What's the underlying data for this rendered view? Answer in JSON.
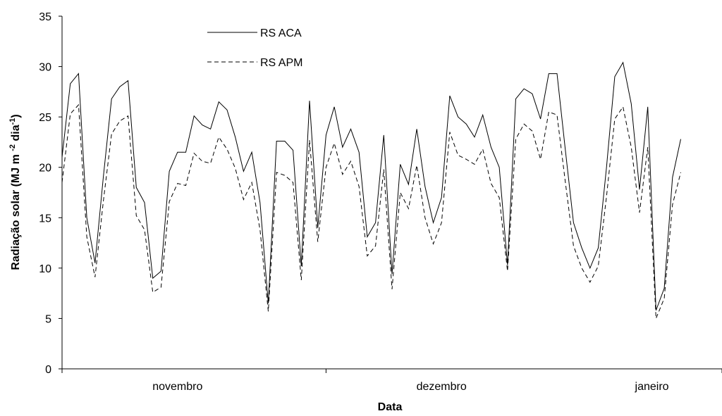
{
  "chart_data": {
    "type": "line",
    "title": "",
    "xlabel": "Data",
    "ylabel": "Radiação solar (MJ m <sup>-2</sup> dia<sup>-1</sup>)",
    "ylabel_parts": [
      "Radiação solar (MJ m ",
      "-2",
      " dia",
      "-1",
      ")"
    ],
    "ylim": [
      0,
      35
    ],
    "y_ticks": [
      0,
      5,
      10,
      15,
      20,
      25,
      30,
      35
    ],
    "x_range": [
      0,
      80
    ],
    "x_month_labels": [
      {
        "label": "novembro",
        "x": 14
      },
      {
        "label": "dezembro",
        "x": 46
      },
      {
        "label": "janeiro",
        "x": 71.5
      }
    ],
    "x_tick_marks": [
      0,
      32,
      80
    ],
    "grid": false,
    "legend_position": "top-left",
    "series": [
      {
        "name": "RS ACA",
        "style": "solid",
        "color": "#000000",
        "values": [
          21.0,
          28.3,
          29.3,
          15.0,
          10.5,
          19.0,
          26.8,
          28.0,
          28.6,
          18.0,
          16.5,
          9.0,
          9.7,
          19.6,
          21.5,
          21.5,
          25.1,
          24.2,
          23.8,
          26.5,
          25.7,
          23.0,
          19.6,
          21.5,
          16.5,
          6.5,
          22.6,
          22.6,
          21.7,
          10.2,
          26.6,
          14.0,
          23.2,
          26.0,
          22.0,
          23.8,
          21.5,
          13.1,
          14.5,
          23.2,
          9.4,
          20.3,
          18.3,
          23.8,
          18.1,
          14.5,
          17.0,
          27.1,
          25.0,
          24.3,
          23.0,
          25.2,
          22.0,
          20.0,
          10.3,
          26.8,
          27.8,
          27.3,
          24.8,
          29.3,
          29.3,
          21.8,
          14.5,
          12.0,
          10.0,
          12.0,
          20.0,
          29.0,
          30.4,
          26.3,
          17.8,
          26.0,
          5.8,
          8.0,
          19.0,
          22.8
        ]
      },
      {
        "name": "RS APM",
        "style": "dashed",
        "color": "#000000",
        "values": [
          18.5,
          25.3,
          26.2,
          13.1,
          9.1,
          16.6,
          23.3,
          24.6,
          25.1,
          15.2,
          13.8,
          7.6,
          8.1,
          16.6,
          18.4,
          18.2,
          21.4,
          20.6,
          20.4,
          23.0,
          21.8,
          19.9,
          16.8,
          18.5,
          13.8,
          5.7,
          19.5,
          19.2,
          18.5,
          8.8,
          22.7,
          12.6,
          20.0,
          22.4,
          19.3,
          20.6,
          18.1,
          11.2,
          12.2,
          19.8,
          7.9,
          17.5,
          15.9,
          20.2,
          15.0,
          12.4,
          14.5,
          23.5,
          21.2,
          20.8,
          20.3,
          21.8,
          18.4,
          17.0,
          9.7,
          22.8,
          24.3,
          23.6,
          20.8,
          25.5,
          25.2,
          18.6,
          12.2,
          10.0,
          8.6,
          10.2,
          17.1,
          24.8,
          26.0,
          22.0,
          15.5,
          22.0,
          5.0,
          7.0,
          16.3,
          19.5
        ]
      }
    ]
  }
}
